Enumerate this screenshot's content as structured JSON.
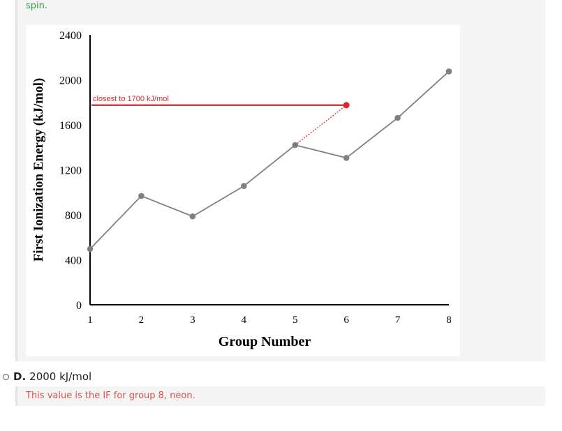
{
  "feedback_correct": {
    "text": "spin."
  },
  "chart_data": {
    "type": "line",
    "xlabel": "Group Number",
    "ylabel": "First Ionization Energy (kJ/mol)",
    "x": [
      1,
      2,
      3,
      4,
      5,
      6,
      7,
      8
    ],
    "xlim": [
      1,
      8
    ],
    "ylim": [
      0,
      2400
    ],
    "yticks": [
      0,
      400,
      800,
      1200,
      1600,
      2000,
      2400
    ],
    "xticks": [
      1,
      2,
      3,
      4,
      5,
      6,
      7,
      8
    ],
    "series": [
      {
        "values": [
          496,
          968,
          786,
          1056,
          1420,
          1306,
          1662,
          2075
        ],
        "color": "#808080"
      }
    ],
    "annotation": {
      "text": "closest to 1700 kJ/mol",
      "point": {
        "x": 6,
        "y": 1775
      },
      "from_point": {
        "x": 5,
        "y": 1420
      },
      "color": "#e0202a"
    },
    "grid": false
  },
  "option_d": {
    "letter": "D.",
    "text": "2000 kJ/mol"
  },
  "feedback_d": {
    "text": "This value is the IF for group 8, neon."
  }
}
